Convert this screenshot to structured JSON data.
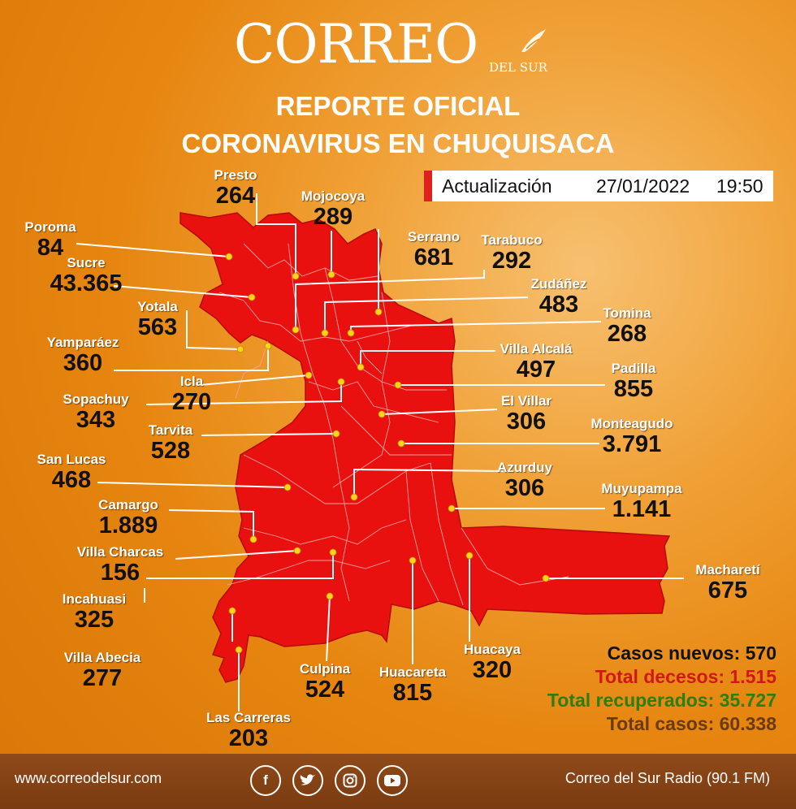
{
  "header": {
    "logo_main": "CORREO",
    "logo_sub": "DEL SUR",
    "title_line1": "REPORTE OFICIAL",
    "title_line2": "CORONAVIRUS EN CHUQUISACA"
  },
  "update": {
    "label": "Actualización",
    "date": "27/01/2022",
    "time": "19:50"
  },
  "colors": {
    "map_red": "#e8110f",
    "accent_orange": "#e88a12",
    "footer_brown": "#8b4513"
  },
  "municipalities": [
    {
      "name": "Presto",
      "cases": "264"
    },
    {
      "name": "Mojocoya",
      "cases": "289"
    },
    {
      "name": "Poroma",
      "cases": "84"
    },
    {
      "name": "Serrano",
      "cases": "681"
    },
    {
      "name": "Tarabuco",
      "cases": "292"
    },
    {
      "name": "Sucre",
      "cases": "43.365"
    },
    {
      "name": "Zudáñez",
      "cases": "483"
    },
    {
      "name": "Yotala",
      "cases": "563"
    },
    {
      "name": "Tomina",
      "cases": "268"
    },
    {
      "name": "Yamparáez",
      "cases": "360"
    },
    {
      "name": "Villa Alcalá",
      "cases": "497"
    },
    {
      "name": "Icla",
      "cases": "270"
    },
    {
      "name": "Padilla",
      "cases": "855"
    },
    {
      "name": "Sopachuy",
      "cases": "343"
    },
    {
      "name": "El Villar",
      "cases": "306"
    },
    {
      "name": "Tarvita",
      "cases": "528"
    },
    {
      "name": "Monteagudo",
      "cases": "3.791"
    },
    {
      "name": "San Lucas",
      "cases": "468"
    },
    {
      "name": "Azurduy",
      "cases": "306"
    },
    {
      "name": "Muyupampa",
      "cases": "1.141"
    },
    {
      "name": "Camargo",
      "cases": "1.889"
    },
    {
      "name": "Villa Charcas",
      "cases": "156"
    },
    {
      "name": "Macharetí",
      "cases": "675"
    },
    {
      "name": "Incahuasi",
      "cases": "325"
    },
    {
      "name": "Villa Abecia",
      "cases": "277"
    },
    {
      "name": "Huacaya",
      "cases": "320"
    },
    {
      "name": "Culpina",
      "cases": "524"
    },
    {
      "name": "Huacareta",
      "cases": "815"
    },
    {
      "name": "Las Carreras",
      "cases": "203"
    }
  ],
  "stats": {
    "new_cases": "Casos nuevos: 570",
    "deaths": "Total decesos: 1.515",
    "recovered": "Total recuperados: 35.727",
    "total": "Total casos: 60.338",
    "colors": {
      "new_cases": "#111111",
      "deaths": "#d01818",
      "recovered": "#2e7d12",
      "total": "#6b3a10"
    }
  },
  "footer": {
    "url": "www.correodelsur.com",
    "radio": "Correo del Sur Radio (90.1 FM)",
    "social_icons": [
      "facebook-icon",
      "twitter-icon",
      "instagram-icon",
      "youtube-icon"
    ]
  }
}
